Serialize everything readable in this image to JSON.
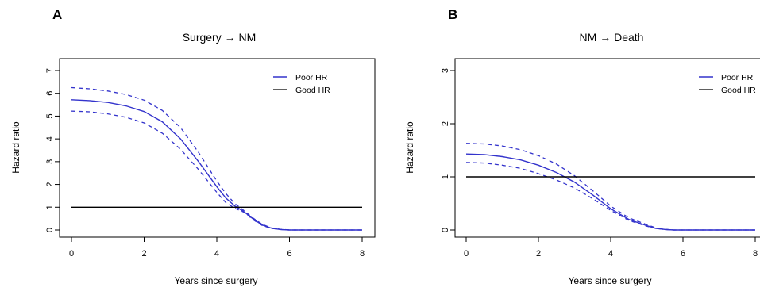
{
  "chart_data": [
    {
      "panel": "A",
      "type": "line",
      "title": "Surgery → NM",
      "xlabel": "Years since surgery",
      "ylabel": "Hazard ratio",
      "xlim": [
        0,
        8
      ],
      "ylim": [
        0,
        7
      ],
      "xticks": [
        "0",
        "2",
        "4",
        "6",
        "8"
      ],
      "yticks": [
        "0",
        "1",
        "2",
        "3",
        "4",
        "5",
        "6",
        "7"
      ],
      "legend": {
        "placement": "top-right",
        "entries": [
          "Poor HR",
          "Good HR"
        ]
      },
      "series": [
        {
          "name": "Poor HR",
          "color": "#3333cc",
          "x": [
            0,
            0.5,
            1,
            1.5,
            2,
            2.5,
            3,
            3.5,
            4,
            4.25,
            4.5,
            4.75,
            5,
            5.25,
            5.5,
            5.75,
            6,
            6.5,
            7,
            7.5,
            8
          ],
          "y": [
            5.72,
            5.68,
            5.6,
            5.45,
            5.2,
            4.75,
            4.0,
            3.0,
            1.9,
            1.4,
            1.05,
            0.8,
            0.48,
            0.22,
            0.08,
            0.02,
            0,
            0,
            0,
            0,
            0
          ],
          "lower": [
            5.22,
            5.19,
            5.1,
            4.95,
            4.7,
            4.25,
            3.55,
            2.65,
            1.65,
            1.2,
            0.95,
            0.78,
            0.45,
            0.2,
            0.07,
            0.02,
            0,
            0,
            0,
            0,
            0
          ],
          "upper": [
            6.25,
            6.2,
            6.1,
            5.95,
            5.7,
            5.25,
            4.5,
            3.4,
            2.15,
            1.6,
            1.15,
            0.85,
            0.52,
            0.25,
            0.09,
            0.03,
            0,
            0,
            0,
            0,
            0
          ]
        },
        {
          "name": "Good HR",
          "color": "#000000",
          "x": [
            0,
            8
          ],
          "y": [
            1,
            1
          ]
        }
      ]
    },
    {
      "panel": "B",
      "type": "line",
      "title": "NM → Death",
      "xlabel": "Years since surgery",
      "ylabel": "Hazard ratio",
      "xlim": [
        0,
        8
      ],
      "ylim": [
        0,
        3
      ],
      "xticks": [
        "0",
        "2",
        "4",
        "6",
        "8"
      ],
      "yticks": [
        "0",
        "1",
        "2",
        "3"
      ],
      "legend": {
        "placement": "top-right",
        "entries": [
          "Poor HR",
          "Good HR"
        ]
      },
      "series": [
        {
          "name": "Poor HR",
          "color": "#3333cc",
          "x": [
            0,
            0.5,
            1,
            1.5,
            2,
            2.5,
            3,
            3.5,
            4,
            4.5,
            5,
            5.25,
            5.5,
            5.75,
            6,
            6.5,
            7,
            7.5,
            8
          ],
          "y": [
            1.43,
            1.42,
            1.38,
            1.32,
            1.22,
            1.08,
            0.9,
            0.66,
            0.4,
            0.2,
            0.08,
            0.03,
            0.01,
            0,
            0,
            0,
            0,
            0,
            0
          ],
          "lower": [
            1.27,
            1.26,
            1.22,
            1.16,
            1.06,
            0.94,
            0.79,
            0.59,
            0.37,
            0.18,
            0.07,
            0.03,
            0.01,
            0,
            0,
            0,
            0,
            0,
            0
          ],
          "upper": [
            1.63,
            1.62,
            1.58,
            1.51,
            1.4,
            1.24,
            1.02,
            0.74,
            0.45,
            0.23,
            0.1,
            0.04,
            0.01,
            0,
            0,
            0,
            0,
            0,
            0
          ]
        },
        {
          "name": "Good HR",
          "color": "#000000",
          "x": [
            0,
            8
          ],
          "y": [
            1,
            1
          ]
        }
      ]
    }
  ]
}
